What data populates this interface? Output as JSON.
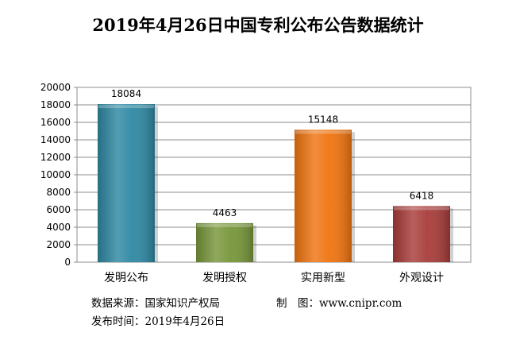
{
  "chart_data": {
    "type": "bar",
    "title": "2019年4月26日中国专利公布公告数据统计",
    "categories": [
      "发明公布",
      "发明授权",
      "实用新型",
      "外观设计"
    ],
    "values": [
      18084,
      4463,
      15148,
      6418
    ],
    "colors": [
      "#2e88a3",
      "#77963a",
      "#ef7410",
      "#a83c3a"
    ],
    "ylim": [
      0,
      20000
    ],
    "yticks": [
      "0",
      "2000",
      "4000",
      "6000",
      "8000",
      "10000",
      "12000",
      "14000",
      "16000",
      "18000",
      "20000"
    ],
    "xlabel": "",
    "ylabel": "",
    "grid": true,
    "legend": "none"
  },
  "footer": {
    "source_label": "数据来源：",
    "source_value": "国家知识产权局",
    "maker_label": "制　图：",
    "maker_value": "www.cnipr.com",
    "date_label": "发布时间：",
    "date_value": "2019年4月26日"
  }
}
